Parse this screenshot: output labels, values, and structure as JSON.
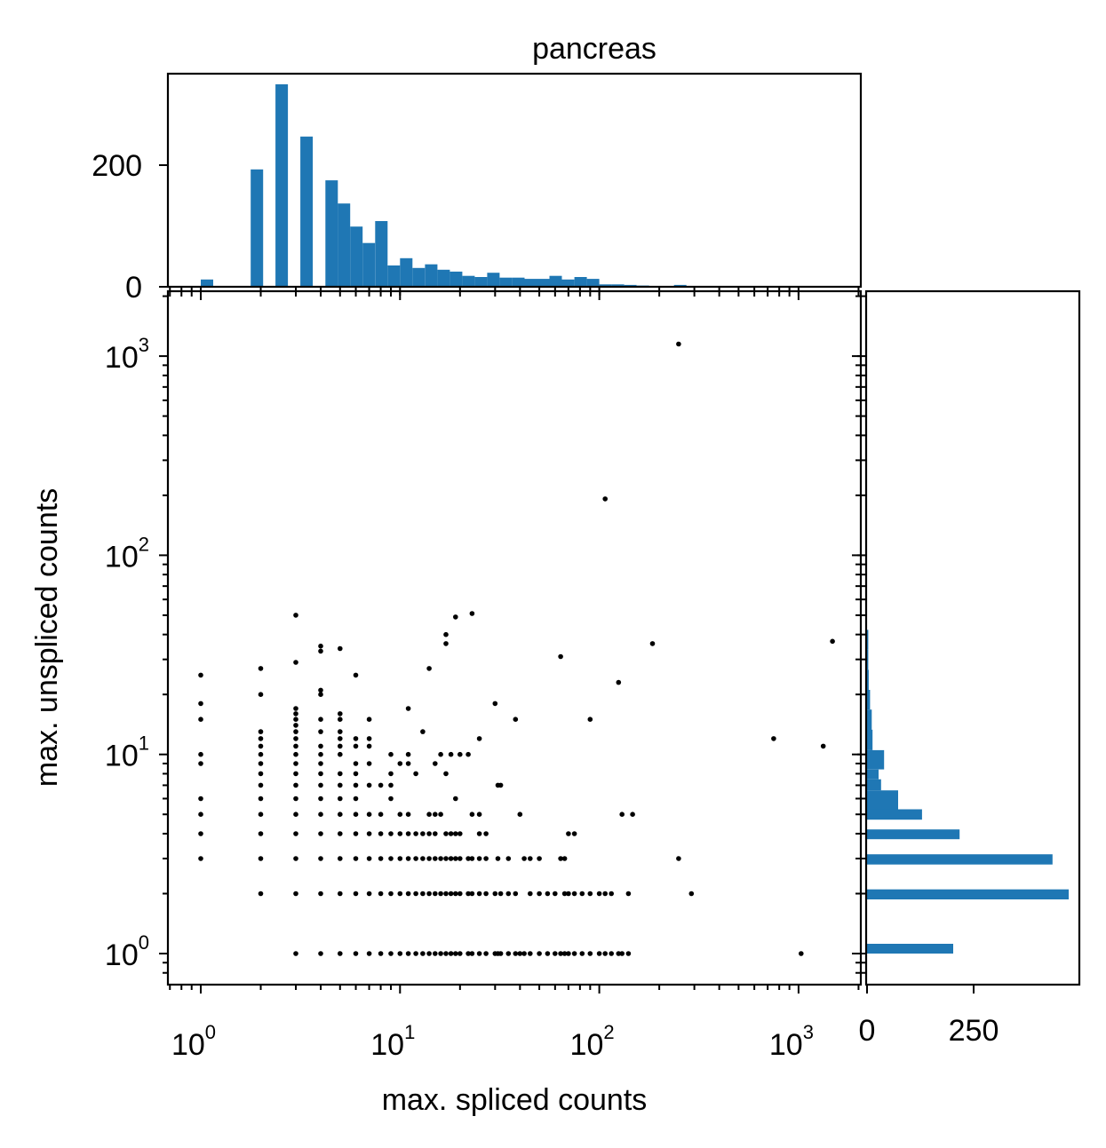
{
  "chart_data": {
    "type": "scatter",
    "title": "pancreas",
    "xlabel": "max. spliced counts",
    "ylabel": "max. unspliced counts",
    "xscale": "log",
    "yscale": "log",
    "xlim": [
      0.7,
      1800
    ],
    "ylim": [
      0.7,
      2200
    ],
    "x_ticks": [
      {
        "value": 1,
        "base": "10",
        "exp": "0"
      },
      {
        "value": 10,
        "base": "10",
        "exp": "1"
      },
      {
        "value": 100,
        "base": "10",
        "exp": "2"
      },
      {
        "value": 1000,
        "base": "10",
        "exp": "3"
      }
    ],
    "y_ticks": [
      {
        "value": 1,
        "base": "10",
        "exp": "0"
      },
      {
        "value": 10,
        "base": "10",
        "exp": "1"
      },
      {
        "value": 100,
        "base": "10",
        "exp": "2"
      },
      {
        "value": 1000,
        "base": "10",
        "exp": "3"
      }
    ],
    "marker_color": "#000000",
    "bar_color": "#1f77b4",
    "points": [
      [
        1,
        25
      ],
      [
        1,
        18
      ],
      [
        1,
        15
      ],
      [
        1,
        10
      ],
      [
        1,
        9
      ],
      [
        1,
        6
      ],
      [
        1,
        5
      ],
      [
        1,
        4
      ],
      [
        1,
        3
      ],
      [
        2,
        27
      ],
      [
        2,
        20
      ],
      [
        2,
        13
      ],
      [
        2,
        12
      ],
      [
        2,
        11
      ],
      [
        2,
        10
      ],
      [
        2,
        9
      ],
      [
        2,
        8
      ],
      [
        2,
        7
      ],
      [
        2,
        6
      ],
      [
        2,
        5
      ],
      [
        2,
        4
      ],
      [
        2,
        3
      ],
      [
        2,
        2
      ],
      [
        3,
        50
      ],
      [
        3,
        29
      ],
      [
        3,
        17
      ],
      [
        3,
        16
      ],
      [
        3,
        15
      ],
      [
        3,
        14
      ],
      [
        3,
        13
      ],
      [
        3,
        12
      ],
      [
        3,
        11
      ],
      [
        3,
        10
      ],
      [
        3,
        9
      ],
      [
        3,
        8
      ],
      [
        3,
        7
      ],
      [
        3,
        6
      ],
      [
        3,
        5
      ],
      [
        3,
        4
      ],
      [
        3,
        3
      ],
      [
        3,
        2
      ],
      [
        3,
        1
      ],
      [
        4,
        35
      ],
      [
        4,
        33
      ],
      [
        4,
        21
      ],
      [
        4,
        20
      ],
      [
        4,
        15
      ],
      [
        4,
        13
      ],
      [
        4,
        11
      ],
      [
        4,
        10
      ],
      [
        4,
        9
      ],
      [
        4,
        8
      ],
      [
        4,
        7
      ],
      [
        4,
        6
      ],
      [
        4,
        5
      ],
      [
        4,
        4
      ],
      [
        4,
        3
      ],
      [
        4,
        2
      ],
      [
        4,
        1
      ],
      [
        5,
        34
      ],
      [
        5,
        16
      ],
      [
        5,
        15
      ],
      [
        5,
        13
      ],
      [
        5,
        12
      ],
      [
        5,
        11
      ],
      [
        5,
        10
      ],
      [
        5,
        8
      ],
      [
        5,
        7
      ],
      [
        5,
        6
      ],
      [
        5,
        5
      ],
      [
        5,
        4
      ],
      [
        5,
        3
      ],
      [
        5,
        2
      ],
      [
        5,
        1
      ],
      [
        6,
        25
      ],
      [
        6,
        12
      ],
      [
        6,
        11
      ],
      [
        6,
        9
      ],
      [
        6,
        8
      ],
      [
        6,
        7
      ],
      [
        6,
        6
      ],
      [
        6,
        5
      ],
      [
        6,
        4
      ],
      [
        6,
        3
      ],
      [
        6,
        2
      ],
      [
        6,
        1
      ],
      [
        7,
        15
      ],
      [
        7,
        12
      ],
      [
        7,
        11
      ],
      [
        7,
        9
      ],
      [
        7,
        7
      ],
      [
        7,
        5
      ],
      [
        7,
        4
      ],
      [
        7,
        3
      ],
      [
        7,
        2
      ],
      [
        7,
        1
      ],
      [
        8,
        7
      ],
      [
        8,
        5
      ],
      [
        8,
        4
      ],
      [
        8,
        3
      ],
      [
        8,
        2
      ],
      [
        8,
        1
      ],
      [
        9,
        10
      ],
      [
        9,
        8
      ],
      [
        9,
        7
      ],
      [
        9,
        6
      ],
      [
        9,
        4
      ],
      [
        9,
        3
      ],
      [
        9,
        2
      ],
      [
        9,
        1
      ],
      [
        10,
        9
      ],
      [
        10,
        5
      ],
      [
        10,
        4
      ],
      [
        10,
        3
      ],
      [
        10,
        2
      ],
      [
        10,
        1
      ],
      [
        11,
        17
      ],
      [
        11,
        10
      ],
      [
        11,
        9
      ],
      [
        11,
        5
      ],
      [
        11,
        4
      ],
      [
        11,
        3
      ],
      [
        11,
        2
      ],
      [
        11,
        1
      ],
      [
        12,
        8
      ],
      [
        12,
        4
      ],
      [
        12,
        3
      ],
      [
        12,
        2
      ],
      [
        12,
        1
      ],
      [
        13,
        13
      ],
      [
        13,
        4
      ],
      [
        13,
        3
      ],
      [
        13,
        2
      ],
      [
        13,
        1
      ],
      [
        14,
        27
      ],
      [
        14,
        5
      ],
      [
        14,
        4
      ],
      [
        14,
        3
      ],
      [
        14,
        2
      ],
      [
        14,
        1
      ],
      [
        15,
        9
      ],
      [
        15,
        5
      ],
      [
        15,
        4
      ],
      [
        15,
        3
      ],
      [
        15,
        2
      ],
      [
        15,
        1
      ],
      [
        16,
        10
      ],
      [
        16,
        5
      ],
      [
        16,
        3
      ],
      [
        16,
        2
      ],
      [
        16,
        1
      ],
      [
        17,
        36
      ],
      [
        17,
        40
      ],
      [
        17,
        8
      ],
      [
        17,
        4
      ],
      [
        17,
        3
      ],
      [
        17,
        2
      ],
      [
        17,
        1
      ],
      [
        18,
        10
      ],
      [
        18,
        4
      ],
      [
        18,
        3
      ],
      [
        18,
        2
      ],
      [
        18,
        1
      ],
      [
        19,
        49
      ],
      [
        19,
        6
      ],
      [
        19,
        4
      ],
      [
        19,
        3
      ],
      [
        19,
        2
      ],
      [
        19,
        1
      ],
      [
        20,
        10
      ],
      [
        20,
        4
      ],
      [
        20,
        3
      ],
      [
        20,
        2
      ],
      [
        20,
        1
      ],
      [
        22,
        10
      ],
      [
        22,
        3
      ],
      [
        22,
        2
      ],
      [
        22,
        1
      ],
      [
        23,
        51
      ],
      [
        23,
        5
      ],
      [
        23,
        3
      ],
      [
        23,
        2
      ],
      [
        23,
        1
      ],
      [
        25,
        12
      ],
      [
        25,
        5
      ],
      [
        25,
        4
      ],
      [
        25,
        3
      ],
      [
        25,
        2
      ],
      [
        25,
        1
      ],
      [
        27,
        4
      ],
      [
        27,
        3
      ],
      [
        27,
        2
      ],
      [
        27,
        1
      ],
      [
        30,
        18
      ],
      [
        30,
        2
      ],
      [
        30,
        1
      ],
      [
        31,
        7
      ],
      [
        31,
        3
      ],
      [
        31,
        1
      ],
      [
        32,
        7
      ],
      [
        32,
        2
      ],
      [
        32,
        1
      ],
      [
        35,
        3
      ],
      [
        35,
        2
      ],
      [
        35,
        1
      ],
      [
        38,
        15
      ],
      [
        38,
        2
      ],
      [
        38,
        1
      ],
      [
        40,
        5
      ],
      [
        40,
        1
      ],
      [
        42,
        3
      ],
      [
        42,
        1
      ],
      [
        45,
        3
      ],
      [
        45,
        2
      ],
      [
        45,
        1
      ],
      [
        50,
        3
      ],
      [
        50,
        2
      ],
      [
        50,
        1
      ],
      [
        55,
        2
      ],
      [
        55,
        1
      ],
      [
        60,
        2
      ],
      [
        60,
        1
      ],
      [
        64,
        31
      ],
      [
        64,
        3
      ],
      [
        64,
        1
      ],
      [
        67,
        3
      ],
      [
        67,
        2
      ],
      [
        67,
        1
      ],
      [
        70,
        4
      ],
      [
        70,
        2
      ],
      [
        70,
        1
      ],
      [
        75,
        4
      ],
      [
        75,
        2
      ],
      [
        75,
        1
      ],
      [
        82,
        2
      ],
      [
        82,
        1
      ],
      [
        90,
        15
      ],
      [
        90,
        2
      ],
      [
        90,
        1
      ],
      [
        100,
        2
      ],
      [
        100,
        1
      ],
      [
        107,
        192
      ],
      [
        107,
        2
      ],
      [
        107,
        1
      ],
      [
        115,
        2
      ],
      [
        115,
        1
      ],
      [
        125,
        23
      ],
      [
        125,
        1
      ],
      [
        130,
        5
      ],
      [
        130,
        1
      ],
      [
        140,
        2
      ],
      [
        140,
        1
      ],
      [
        147,
        5
      ],
      [
        185,
        36
      ],
      [
        250,
        1150
      ],
      [
        250,
        3
      ],
      [
        290,
        2
      ],
      [
        750,
        12
      ],
      [
        1030,
        1
      ],
      [
        1330,
        11
      ],
      [
        1480,
        37
      ]
    ],
    "top_hist": {
      "xlabel": "",
      "ylabel": "",
      "ylim": [
        0,
        330
      ],
      "y_ticks": [
        0,
        200
      ],
      "bin_width_log10": 0.0625,
      "bins": [
        {
          "x_start": 1.0,
          "count": 12
        },
        {
          "x_start": 1.78,
          "count": 193
        },
        {
          "x_start": 2.37,
          "count": 333
        },
        {
          "x_start": 3.16,
          "count": 247
        },
        {
          "x_start": 4.22,
          "count": 175
        },
        {
          "x_start": 4.87,
          "count": 137
        },
        {
          "x_start": 5.62,
          "count": 99
        },
        {
          "x_start": 6.49,
          "count": 72
        },
        {
          "x_start": 7.5,
          "count": 108
        },
        {
          "x_start": 8.66,
          "count": 35
        },
        {
          "x_start": 10.0,
          "count": 47
        },
        {
          "x_start": 11.55,
          "count": 31
        },
        {
          "x_start": 13.34,
          "count": 37
        },
        {
          "x_start": 15.4,
          "count": 28
        },
        {
          "x_start": 17.78,
          "count": 25
        },
        {
          "x_start": 20.54,
          "count": 18
        },
        {
          "x_start": 23.71,
          "count": 16
        },
        {
          "x_start": 27.38,
          "count": 23
        },
        {
          "x_start": 31.62,
          "count": 15
        },
        {
          "x_start": 36.52,
          "count": 15
        },
        {
          "x_start": 42.17,
          "count": 13
        },
        {
          "x_start": 48.7,
          "count": 13
        },
        {
          "x_start": 56.23,
          "count": 18
        },
        {
          "x_start": 64.94,
          "count": 12
        },
        {
          "x_start": 74.99,
          "count": 16
        },
        {
          "x_start": 86.6,
          "count": 13
        },
        {
          "x_start": 100.0,
          "count": 4
        },
        {
          "x_start": 115.48,
          "count": 4
        },
        {
          "x_start": 133.35,
          "count": 3
        },
        {
          "x_start": 154.0,
          "count": 2
        },
        {
          "x_start": 237.14,
          "count": 3
        }
      ]
    },
    "right_hist": {
      "xlim": [
        0,
        500
      ],
      "x_ticks": [
        0,
        250
      ],
      "bins": [
        {
          "y_start": 1.0,
          "y_end": 1.12,
          "count": 202
        },
        {
          "y_start": 1.87,
          "y_end": 2.1,
          "count": 473
        },
        {
          "y_start": 2.8,
          "y_end": 3.15,
          "count": 435
        },
        {
          "y_start": 3.75,
          "y_end": 4.2,
          "count": 217
        },
        {
          "y_start": 4.7,
          "y_end": 5.3,
          "count": 129
        },
        {
          "y_start": 5.3,
          "y_end": 6.6,
          "count": 73
        },
        {
          "y_start": 6.6,
          "y_end": 7.5,
          "count": 33
        },
        {
          "y_start": 7.5,
          "y_end": 8.4,
          "count": 27
        },
        {
          "y_start": 8.4,
          "y_end": 10.5,
          "count": 40
        },
        {
          "y_start": 10.5,
          "y_end": 13.3,
          "count": 13
        },
        {
          "y_start": 13.3,
          "y_end": 16.8,
          "count": 11
        },
        {
          "y_start": 16.8,
          "y_end": 21.1,
          "count": 7
        },
        {
          "y_start": 21.1,
          "y_end": 26.6,
          "count": 4
        },
        {
          "y_start": 26.6,
          "y_end": 33.5,
          "count": 3
        },
        {
          "y_start": 33.5,
          "y_end": 42.2,
          "count": 3
        }
      ]
    }
  }
}
